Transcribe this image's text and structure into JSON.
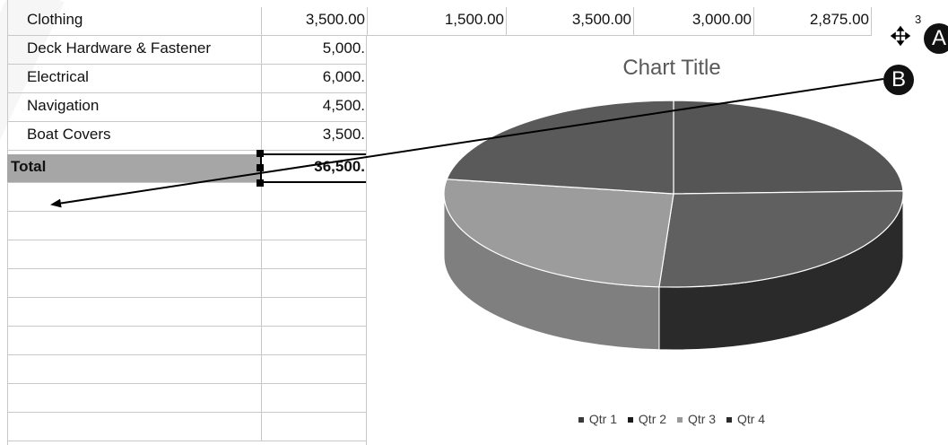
{
  "rows": [
    {
      "label": "Clothing",
      "values": [
        "3,500.00",
        "1,500.00",
        "3,500.00",
        "3,000.00",
        "2,875.00",
        "3"
      ]
    },
    {
      "label": "Deck Hardware & Fastener",
      "values": [
        "5,000."
      ]
    },
    {
      "label": "Electrical",
      "values": [
        "6,000."
      ]
    },
    {
      "label": "Navigation",
      "values": [
        "4,500."
      ]
    },
    {
      "label": "Boat Covers",
      "values": [
        "3,500."
      ]
    }
  ],
  "total": {
    "label": "Total",
    "value": "36,500."
  },
  "chart": {
    "title": "Chart Title",
    "legend": [
      {
        "label": "Qtr 1",
        "color": "#3a3a3a"
      },
      {
        "label": "Qtr 2",
        "color": "#1a1a1a"
      },
      {
        "label": "Qtr 3",
        "color": "#9a9a9a"
      },
      {
        "label": "Qtr 4",
        "color": "#2a2a2a"
      }
    ]
  },
  "chart_data": {
    "type": "pie",
    "title": "Chart Title",
    "categories": [
      "Qtr 1",
      "Qtr 2",
      "Qtr 3",
      "Qtr 4"
    ],
    "values": [
      24.5,
      26.5,
      26.5,
      22.5
    ],
    "legend_position": "bottom",
    "style": "3d-pie"
  },
  "callouts": {
    "a": "A",
    "b": "B"
  },
  "icons": {
    "move": "move-cursor-icon"
  }
}
